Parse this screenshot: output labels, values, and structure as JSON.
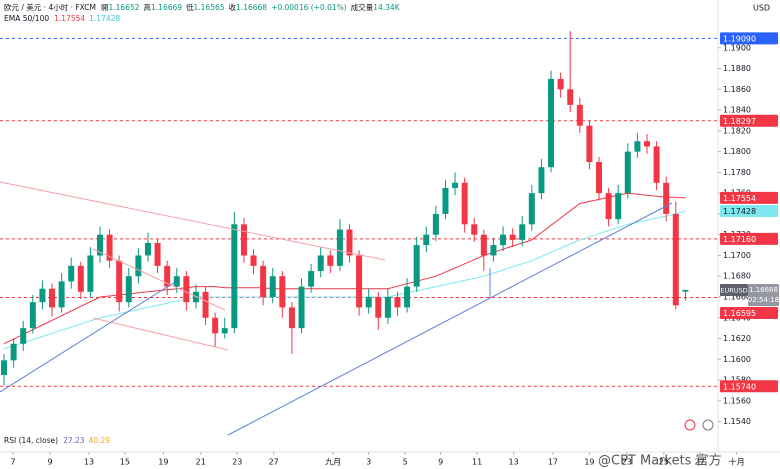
{
  "chart_data": {
    "type": "candlestick",
    "currency": "USD",
    "legend": {
      "symbol": "欧元 / 美元 · 4小时 · FXCM",
      "ohlc_labels": [
        "開",
        "高",
        "低",
        "收"
      ],
      "change": "+0.00016 (+0.01%)",
      "volume_label": "成交量",
      "volume": "14.34K"
    },
    "up_color": "#089981",
    "down_color": "#f23645",
    "candles": [
      [
        1.1585,
        1.1605,
        1.1575,
        1.1599
      ],
      [
        1.1599,
        1.162,
        1.1592,
        1.1615
      ],
      [
        1.1615,
        1.1637,
        1.1608,
        1.163
      ],
      [
        1.163,
        1.1662,
        1.1625,
        1.1655
      ],
      [
        1.1655,
        1.1676,
        1.1648,
        1.1668
      ],
      [
        1.1668,
        1.1673,
        1.1641,
        1.165
      ],
      [
        1.165,
        1.1683,
        1.1645,
        1.1675
      ],
      [
        1.1675,
        1.1698,
        1.1668,
        1.169
      ],
      [
        1.169,
        1.1694,
        1.1658,
        1.1665
      ],
      [
        1.1665,
        1.1708,
        1.166,
        1.17
      ],
      [
        1.17,
        1.1728,
        1.1693,
        1.172
      ],
      [
        1.172,
        1.1725,
        1.1688,
        1.1695
      ],
      [
        1.1695,
        1.17,
        1.1646,
        1.1655
      ],
      [
        1.1655,
        1.1688,
        1.165,
        1.168
      ],
      [
        1.168,
        1.1707,
        1.1673,
        1.17
      ],
      [
        1.17,
        1.1722,
        1.1694,
        1.1712
      ],
      [
        1.1712,
        1.1716,
        1.1683,
        1.169
      ],
      [
        1.169,
        1.1695,
        1.1662,
        1.167
      ],
      [
        1.167,
        1.1688,
        1.1664,
        1.168
      ],
      [
        1.168,
        1.1685,
        1.1647,
        1.1655
      ],
      [
        1.1655,
        1.1672,
        1.1649,
        1.1665
      ],
      [
        1.1665,
        1.167,
        1.1633,
        1.164
      ],
      [
        1.164,
        1.1645,
        1.1612,
        1.1625
      ],
      [
        1.1625,
        1.164,
        1.162,
        1.163
      ],
      [
        1.163,
        1.1742,
        1.1625,
        1.173
      ],
      [
        1.173,
        1.1736,
        1.1693,
        1.17
      ],
      [
        1.17,
        1.1706,
        1.1682,
        1.169
      ],
      [
        1.169,
        1.1695,
        1.1652,
        1.166
      ],
      [
        1.166,
        1.1688,
        1.1654,
        1.168
      ],
      [
        1.168,
        1.1685,
        1.164,
        1.165
      ],
      [
        1.165,
        1.1655,
        1.1605,
        1.163
      ],
      [
        1.163,
        1.1678,
        1.1625,
        1.167
      ],
      [
        1.167,
        1.1692,
        1.1664,
        1.1685
      ],
      [
        1.1685,
        1.1708,
        1.1679,
        1.17
      ],
      [
        1.17,
        1.1705,
        1.1683,
        1.169
      ],
      [
        1.169,
        1.1735,
        1.1685,
        1.1725
      ],
      [
        1.1725,
        1.173,
        1.1693,
        1.17
      ],
      [
        1.17,
        1.1705,
        1.1642,
        1.165
      ],
      [
        1.165,
        1.1668,
        1.1644,
        1.166
      ],
      [
        1.166,
        1.1665,
        1.1628,
        1.164
      ],
      [
        1.164,
        1.1668,
        1.1634,
        1.166
      ],
      [
        1.166,
        1.1665,
        1.1642,
        1.165
      ],
      [
        1.165,
        1.1678,
        1.1645,
        1.167
      ],
      [
        1.167,
        1.1718,
        1.1665,
        1.171
      ],
      [
        1.171,
        1.1728,
        1.1703,
        1.172
      ],
      [
        1.172,
        1.1748,
        1.1714,
        1.174
      ],
      [
        1.174,
        1.1773,
        1.1735,
        1.1765
      ],
      [
        1.1765,
        1.178,
        1.1758,
        1.177
      ],
      [
        1.177,
        1.1775,
        1.1722,
        1.173
      ],
      [
        1.173,
        1.1736,
        1.1713,
        1.172
      ],
      [
        1.172,
        1.1725,
        1.1685,
        1.17
      ],
      [
        1.17,
        1.1717,
        1.1694,
        1.171
      ],
      [
        1.171,
        1.1728,
        1.1704,
        1.172
      ],
      [
        1.172,
        1.1726,
        1.1708,
        1.1715
      ],
      [
        1.1715,
        1.1738,
        1.1709,
        1.173
      ],
      [
        1.173,
        1.1768,
        1.1724,
        1.176
      ],
      [
        1.176,
        1.1793,
        1.1754,
        1.1785
      ],
      [
        1.1785,
        1.1878,
        1.178,
        1.187
      ],
      [
        1.187,
        1.1876,
        1.1852,
        1.186
      ],
      [
        1.186,
        1.1916,
        1.1838,
        1.1845
      ],
      [
        1.1845,
        1.1852,
        1.1818,
        1.1825
      ],
      [
        1.1825,
        1.183,
        1.1783,
        1.179
      ],
      [
        1.179,
        1.1795,
        1.1753,
        1.176
      ],
      [
        1.176,
        1.1765,
        1.1728,
        1.1735
      ],
      [
        1.1735,
        1.1768,
        1.173,
        1.176
      ],
      [
        1.176,
        1.1808,
        1.1755,
        1.18
      ],
      [
        1.18,
        1.1818,
        1.1794,
        1.181
      ],
      [
        1.181,
        1.1817,
        1.1798,
        1.1805
      ],
      [
        1.1805,
        1.181,
        1.1763,
        1.177
      ],
      [
        1.177,
        1.1776,
        1.1733,
        1.174
      ],
      [
        1.174,
        1.1752,
        1.1648,
        1.1652
      ],
      [
        1.16652,
        1.16669,
        1.16565,
        1.16668
      ]
    ],
    "indicator": {
      "label": "EMA 50/100",
      "lines": [
        {
          "color": "#f23645",
          "values": [
            1.1615,
            1.16195,
            1.1624,
            1.16285,
            1.1633,
            1.16375,
            1.1642,
            1.16465,
            1.1651,
            1.16555,
            1.166,
            1.1661,
            1.1662,
            1.1663,
            1.1664,
            1.1665,
            1.1666,
            1.1667,
            1.1668,
            1.1669,
            1.167,
            1.167,
            1.167,
            1.1669,
            1.1669,
            1.1669,
            1.1669,
            1.1669,
            1.1668,
            1.1668,
            1.1668,
            1.1668,
            1.1668,
            1.1668,
            1.1668,
            1.1668,
            1.1668,
            1.1668,
            1.1668,
            1.1668,
            1.1668,
            1.16704,
            1.16728,
            1.16752,
            1.16776,
            1.168,
            1.1684,
            1.1688,
            1.1692,
            1.1696,
            1.17,
            1.1703,
            1.1706,
            1.1709,
            1.1712,
            1.1715,
            1.1722,
            1.1729,
            1.1736,
            1.1743,
            1.175,
            1.1752,
            1.1754,
            1.1756,
            1.1758,
            1.176,
            1.1759,
            1.1758,
            1.1757,
            1.1756,
            1.1756,
            1.17554
          ]
        },
        {
          "color": "#7ee8f0",
          "values": [
            1.161,
            1.1613,
            1.1616,
            1.1619,
            1.1622,
            1.1625,
            1.1628,
            1.1631,
            1.1634,
            1.1637,
            1.164,
            1.1642,
            1.1644,
            1.1646,
            1.1648,
            1.165,
            1.1652,
            1.1654,
            1.1656,
            1.1658,
            1.166,
            1.166,
            1.166,
            1.166,
            1.166,
            1.166,
            1.166,
            1.166,
            1.166,
            1.166,
            1.166,
            1.166,
            1.166,
            1.166,
            1.166,
            1.166,
            1.166,
            1.166,
            1.166,
            1.166,
            1.166,
            1.1662,
            1.1664,
            1.1666,
            1.1668,
            1.167,
            1.1672,
            1.1674,
            1.1676,
            1.1678,
            1.168,
            1.1683,
            1.1686,
            1.1689,
            1.1692,
            1.1695,
            1.1699,
            1.1703,
            1.1707,
            1.1711,
            1.1715,
            1.1718,
            1.1721,
            1.1724,
            1.1727,
            1.173,
            1.1732,
            1.1734,
            1.1736,
            1.1738,
            1.174,
            1.17428
          ]
        }
      ]
    },
    "levels": [
      {
        "value": 1.1909,
        "label": "1.19090",
        "color": "#2962ff"
      },
      {
        "value": 1.18297,
        "color": "#f23645"
      },
      {
        "value": 1.1716,
        "label": "1.17160",
        "color": "#f23645"
      },
      {
        "value": 1.16595,
        "color": "#f23645"
      },
      {
        "value": 1.1574,
        "label": "1.15740",
        "color": "#f23645"
      }
    ],
    "last_price": {
      "symbol": "EURUSD",
      "countdown": "02:54:18",
      "color": "#9598a1"
    },
    "ylim": [
      1.153,
      1.1946
    ],
    "yticks": [
      {
        "value": 1.154,
        "label": "1.1540"
      },
      {
        "value": 1.156,
        "label": "1.1560"
      },
      {
        "value": 1.158,
        "label": "1.1580"
      },
      {
        "value": 1.16,
        "label": "1.1600"
      },
      {
        "value": 1.162,
        "label": "1.1620"
      },
      {
        "value": 1.164,
        "label": "1.1640"
      },
      {
        "value": 1.166,
        "label": "1.1660"
      },
      {
        "value": 1.168,
        "label": "1.1680"
      },
      {
        "value": 1.17,
        "label": "1.1700"
      },
      {
        "value": 1.172,
        "label": "1.1720"
      },
      {
        "value": 1.174,
        "label": "1.1740"
      },
      {
        "value": 1.176,
        "label": "1.1760"
      },
      {
        "value": 1.178,
        "label": "1.1780"
      },
      {
        "value": 1.18,
        "label": "1.1800"
      },
      {
        "value": 1.182,
        "label": "1.1820"
      },
      {
        "value": 1.184,
        "label": "1.1840"
      },
      {
        "value": 1.186,
        "label": "1.1860"
      },
      {
        "value": 1.188,
        "label": "1.1880"
      },
      {
        "value": 1.19,
        "label": "1.1900"
      }
    ],
    "xlim": [
      -0.42,
      74.4
    ],
    "xticks": [
      {
        "value": 0.94,
        "label": "7"
      },
      {
        "value": 4.8,
        "label": "9"
      },
      {
        "value": 8.85,
        "label": "13"
      },
      {
        "value": 12.6,
        "label": "15"
      },
      {
        "value": 16.6,
        "label": "19"
      },
      {
        "value": 20.5,
        "label": "21"
      },
      {
        "value": 24.3,
        "label": "23"
      },
      {
        "value": 28.1,
        "label": "27"
      },
      {
        "value": 34.3,
        "label": "九月"
      },
      {
        "value": 38.0,
        "label": "3"
      },
      {
        "value": 41.8,
        "label": "5"
      },
      {
        "value": 45.5,
        "label": "9"
      },
      {
        "value": 49.3,
        "label": "11"
      },
      {
        "value": 53.1,
        "label": "13"
      },
      {
        "value": 57.2,
        "label": "17"
      },
      {
        "value": 61.0,
        "label": "19"
      },
      {
        "value": 64.9,
        "label": "23"
      },
      {
        "value": 68.75,
        "label": "25"
      },
      {
        "value": 72.5,
        "label": "27"
      },
      {
        "value": 76.35,
        "label": "十月"
      }
    ],
    "rsi": {
      "label": "RSI (14, close)",
      "values": [
        27.23,
        40.29
      ],
      "colors": [
        "#7e57c2",
        "#f5a623"
      ]
    },
    "watermark": "@CPT Markets 官方"
  }
}
